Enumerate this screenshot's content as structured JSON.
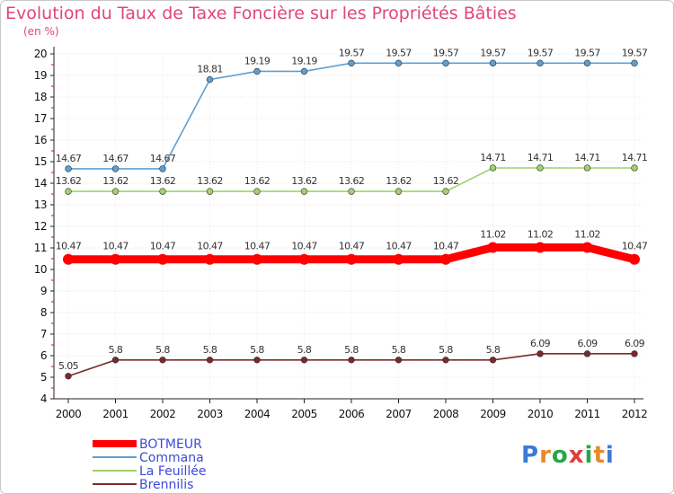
{
  "header": {
    "title": "Evolution du Taux de Taxe Foncière sur les Propriétés Bâties",
    "unit": "(en %)"
  },
  "logo": {
    "text": "Proxiti",
    "colors": [
      "#3a7bd5",
      "#e8892b",
      "#2aa64a",
      "#e23b3b",
      "#2aa64a",
      "#e8892b",
      "#3a7bd5"
    ]
  },
  "chart_data": {
    "type": "line",
    "title": "Evolution du Taux de Taxe Foncière sur les Propriétés Bâties",
    "ylabel": "(en %)",
    "xlabel": "",
    "ylim": [
      4,
      20
    ],
    "yticks": [
      4,
      5,
      6,
      7,
      8,
      9,
      10,
      11,
      12,
      13,
      14,
      15,
      16,
      17,
      18,
      19,
      20
    ],
    "categories": [
      "2000",
      "2001",
      "2002",
      "2003",
      "2004",
      "2005",
      "2006",
      "2007",
      "2008",
      "2009",
      "2010",
      "2011",
      "2012"
    ],
    "series": [
      {
        "name": "Commana",
        "color": "#5e9fd0",
        "values": [
          14.67,
          14.67,
          14.67,
          18.81,
          19.19,
          19.19,
          19.57,
          19.57,
          19.57,
          19.57,
          19.57,
          19.57,
          19.57
        ],
        "labels": [
          "14.67",
          "14.67",
          "14.67",
          "18.81",
          "19.19",
          "19.19",
          "19.57",
          "19.57",
          "19.57",
          "19.57",
          "19.57",
          "19.57",
          "19.57"
        ]
      },
      {
        "name": "La Feuillée",
        "color": "#9ed26a",
        "values": [
          13.62,
          13.62,
          13.62,
          13.62,
          13.62,
          13.62,
          13.62,
          13.62,
          13.62,
          14.71,
          14.71,
          14.71,
          14.71
        ],
        "labels": [
          "13.62",
          "13.62",
          "13.62",
          "13.62",
          "13.62",
          "13.62",
          "13.62",
          "13.62",
          "13.62",
          "14.71",
          "14.71",
          "14.71",
          "14.71"
        ]
      },
      {
        "name": "BOTMEUR",
        "color": "#ff0000",
        "values": [
          10.47,
          10.47,
          10.47,
          10.47,
          10.47,
          10.47,
          10.47,
          10.47,
          10.47,
          11.02,
          11.02,
          11.02,
          10.47
        ],
        "labels": [
          "10.47",
          "10.47",
          "10.47",
          "10.47",
          "10.47",
          "10.47",
          "10.47",
          "10.47",
          "10.47",
          "11.02",
          "11.02",
          "11.02",
          "10.47"
        ]
      },
      {
        "name": "Brennilis",
        "color": "#7a2a2a",
        "values": [
          5.05,
          5.8,
          5.8,
          5.8,
          5.8,
          5.8,
          5.8,
          5.8,
          5.8,
          5.8,
          6.09,
          6.09,
          6.09
        ],
        "labels": [
          "5.05",
          "5.8",
          "5.8",
          "5.8",
          "5.8",
          "5.8",
          "5.8",
          "5.8",
          "5.8",
          "5.8",
          "6.09",
          "6.09",
          "6.09"
        ]
      }
    ],
    "legend": [
      {
        "name": "BOTMEUR",
        "color": "#ff0000"
      },
      {
        "name": "Commana",
        "color": "#5e9fd0"
      },
      {
        "name": "La Feuillée",
        "color": "#9ed26a"
      },
      {
        "name": "Brennilis",
        "color": "#7a2a2a"
      }
    ],
    "legend_position": "bottom-left"
  }
}
